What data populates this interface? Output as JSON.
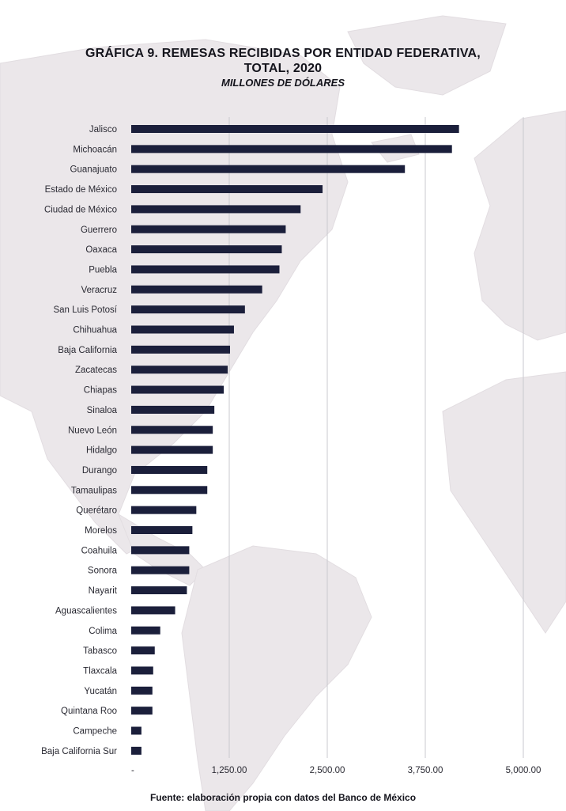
{
  "header": {
    "title_line1": "GRÁFICA 9. REMESAS RECIBIDAS POR ENTIDAD FEDERATIVA,",
    "title_line2": "TOTAL, 2020",
    "subtitle": "MILLONES DE DÓLARES"
  },
  "footer": {
    "source": "Fuente: elaboración propia con datos del Banco de México"
  },
  "colors": {
    "bar": "#1b1f3b",
    "grid": "#c9c9cf",
    "map": "#ebe7ea"
  },
  "chart_data": {
    "type": "bar",
    "orientation": "horizontal",
    "title": "GRÁFICA 9. REMESAS RECIBIDAS POR ENTIDAD FEDERATIVA, TOTAL, 2020",
    "subtitle": "MILLONES DE DÓLARES",
    "xlabel": "",
    "ylabel": "",
    "xlim": [
      0,
      5000
    ],
    "grid": true,
    "x_ticks": [
      0,
      1250,
      2500,
      3750,
      5000
    ],
    "x_tick_labels": [
      "-",
      "1,250.00",
      "2,500.00",
      "3,750.00",
      "5,000.00"
    ],
    "categories": [
      "Jalisco",
      "Michoacán",
      "Guanajuato",
      "Estado de México",
      "Ciudad de México",
      "Guerrero",
      "Oaxaca",
      "Puebla",
      "Veracruz",
      "San Luis Potosí",
      "Chihuahua",
      "Baja California",
      "Zacatecas",
      "Chiapas",
      "Sinaloa",
      "Nuevo León",
      "Hidalgo",
      "Durango",
      "Tamaulipas",
      "Querétaro",
      "Morelos",
      "Coahuila",
      "Sonora",
      "Nayarit",
      "Aguascalientes",
      "Colima",
      "Tabasco",
      "Tlaxcala",
      "Yucatán",
      "Quintana Roo",
      "Campeche",
      "Baja California Sur"
    ],
    "values": [
      4180,
      4090,
      3490,
      2440,
      2160,
      1970,
      1920,
      1890,
      1670,
      1450,
      1310,
      1260,
      1230,
      1180,
      1060,
      1040,
      1040,
      970,
      970,
      830,
      780,
      740,
      740,
      710,
      560,
      370,
      300,
      280,
      270,
      270,
      130,
      130
    ]
  }
}
